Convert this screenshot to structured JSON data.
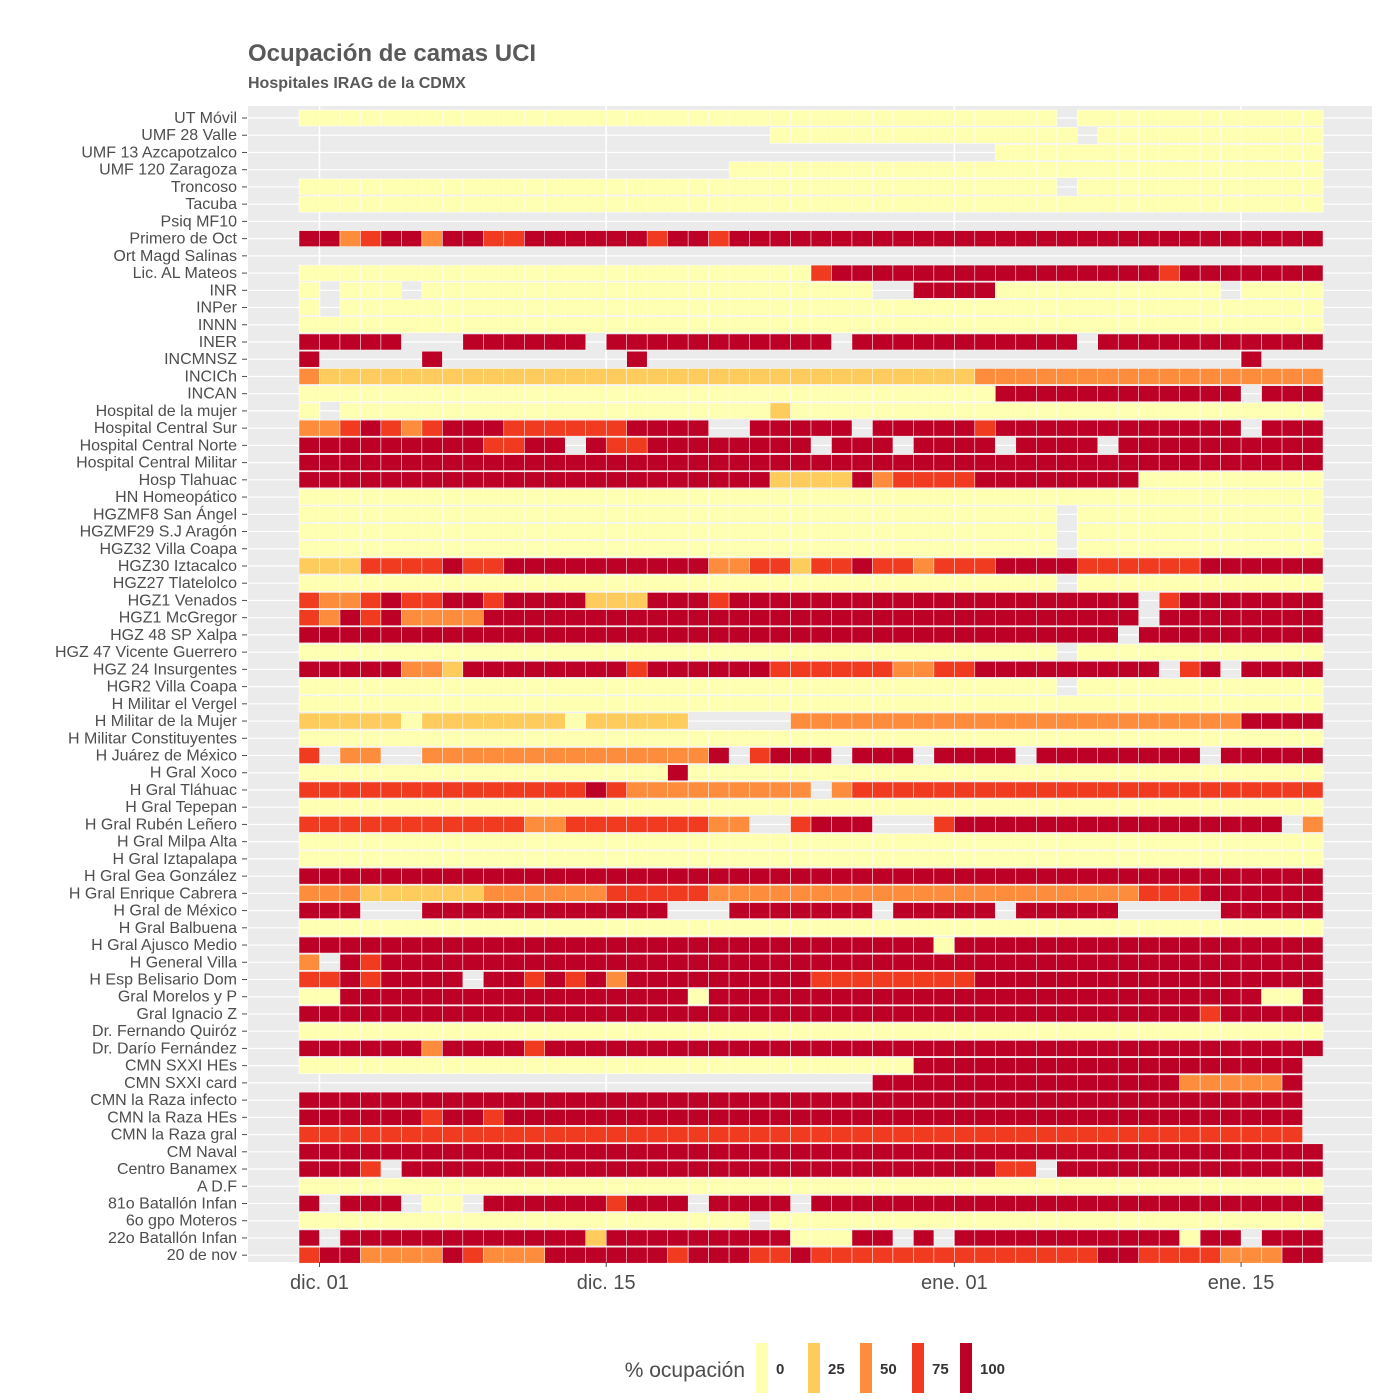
{
  "chart_data": {
    "type": "heatmap",
    "title": "Ocupación de camas UCI",
    "subtitle": "Hospitales IRAG de la CDMX",
    "x_start_date": "2020-11-30",
    "x_end_date": "2021-01-19",
    "x_ticks": [
      {
        "date": "2020-12-01",
        "label": "dic. 01"
      },
      {
        "date": "2020-12-15",
        "label": "dic. 15"
      },
      {
        "date": "2021-01-01",
        "label": "ene. 01"
      },
      {
        "date": "2021-01-15",
        "label": "ene. 15"
      }
    ],
    "legend": {
      "title": "% ocupación",
      "position": "bottom",
      "levels": [
        {
          "label": "0",
          "color": "#ffffb2"
        },
        {
          "label": "25",
          "color": "#fecc5c"
        },
        {
          "label": "50",
          "color": "#fd8d3c"
        },
        {
          "label": "75",
          "color": "#f03b20"
        },
        {
          "label": "100",
          "color": "#bd0026"
        }
      ]
    },
    "missing_color": "#ebebeb",
    "hospitals": [
      {
        "name": "UT Móvil",
        "values": "0000000000000000000000000000000000000-0000000000000000000000000000000000000000000000000000000"
      },
      {
        "name": "UMF 28 Valle",
        "values": "-----------------------000000000000000-00000000000000000000000000000000000000000000000000000"
      },
      {
        "name": "UMF 13 Azcapotzalco",
        "values": "----------------------------------00000000000000000000000000000000000000000000000000000000000"
      },
      {
        "name": "UMF 120 Zaragoza",
        "values": "---------------------00000000000000000000000000000000000000000000000000000000000000000000000"
      },
      {
        "name": "Troncoso",
        "values": "0000000000000000000000000000000000000-0000000000000000000000000000000000000000000000000000000"
      },
      {
        "name": "Tacuba",
        "values": "0000000000000000000000000000000000000000000000000000000000000000000000000000000000000000000000"
      },
      {
        "name": "Psiq MF10",
        "values": "----------------------------------------------------------------------------------------0000"
      },
      {
        "name": "Primero de Oct",
        "values": "442344244334444443443444444444444444444444444444444434444444444444444444444444444444444444444"
      },
      {
        "name": "Ort Magd Salinas",
        "values": "------------------------------------------------------------------------------------------------"
      },
      {
        "name": "Lic. AL Mateos",
        "values": "0000000000000000000000000344444444444444443444444444444444444434444444444444444444444444423343"
      },
      {
        "name": "INR",
        "values": "0-000-0000000000000000000000--444400000000000-0000000000000000000000000000000000000000000000"
      },
      {
        "name": "INPer",
        "values": "0-00000000000000000000000000000000000000000000000000000000000000000000000000000000000000000000"
      },
      {
        "name": "INNN",
        "values": "0000000000000000000000000000000000000000000000000000000000000000000000000000000000000000000000"
      },
      {
        "name": "INER",
        "values": "44444---444444-44444444444-44444444444-44444444444444444444444444444444444444444444444-44444"
      },
      {
        "name": "INCMNSZ",
        "values": "4-----4---------4-----------------------------4-------------------------------------4---------"
      },
      {
        "name": "INCICh",
        "values": "2111111111111111111111111111111112222222222222222222222222222222222222222222222222222222222221-"
      },
      {
        "name": "INCAN",
        "values": "0000000000000000000000000000000000444444444444-4444444444444444444444444444444444444444444444"
      },
      {
        "name": "Hospital de la mujer",
        "values": "0-000000000000000000000100000000000000000000000000000000000000000000000000000000000000000000"
      },
      {
        "name": "Hospital Central Sur",
        "values": "22343234443333334444--44444-444443444444444444-444444444444444444444444444444444444444444444"
      },
      {
        "name": "Hospital Central Norte",
        "values": "4444444443344-43344444444-444-4444-4444-44444444444444444444444444-44444444444444444444444444"
      },
      {
        "name": "Hospital Central Militar",
        "values": "4444444444444444444444444444444444444444444444444444444444444444444444444444444444444444444444"
      },
      {
        "name": "Hosp Tlahuac",
        "values": "4444444444444444444444411114233334444444400000000000000000000000000000000000000000044444444444"
      },
      {
        "name": "HN Homeopático",
        "values": "0000000000000000000000000000000000000000000000000000000000000000000000000000000000000000000000"
      },
      {
        "name": "HGZMF8 San Ángel",
        "values": "0000000000000000000000000000000000000-0000000000000000000000000000000000000000000000000000000"
      },
      {
        "name": "HGZMF29 S.J Aragón",
        "values": "0000000000000000000000000000000000000-0000000000000000000000000000000000000000000000000000000"
      },
      {
        "name": "HGZ32 Villa Coapa",
        "values": "0000000000000000000000000000000000000-0000000000000000000000000000000000000000000000000000000"
      },
      {
        "name": "HGZ30 Iztacalco",
        "values": "1113333433444444444422331334332333444433333344444444-44444444444444444444444444444444444444444442"
      },
      {
        "name": "HGZ27 Tlatelolco",
        "values": "0000000000000000000000000000000000000-0000000000000000000000000000000000000000000000000000000"
      },
      {
        "name": "HGZ1 Venados",
        "values": "32234334434444111444344444444444444444444-34444444444444444444444444444444444444444444444222222"
      },
      {
        "name": "HGZ1 McGregor",
        "values": "32434222244444444444444444444444444444444-44444444444444444444444444444444444444444444444444444"
      },
      {
        "name": "HGZ 48 SP Xalpa",
        "values": "4444444444444444444444444444444444444444-444444444444444444444444444444444444444444444444444444"
      },
      {
        "name": "HGZ 47 Vicente Guerrero",
        "values": "0000000000000000000000000000000000000-0000000000000000000000000000000000000000000000000000000"
      },
      {
        "name": "HGZ 24 Insurgentes",
        "values": "444442214444444434444443333332233444444444-34-444444444444444444444444444444444444444444444444"
      },
      {
        "name": "HGR2 Villa Coapa",
        "values": "0000000000000000000000000000000000000-0000000000000000000000000000000000000000000000000000000"
      },
      {
        "name": "H Militar el Vergel",
        "values": "0000000000000000000000000000000000000000000000000000000000000000000000000000000000000000000000"
      },
      {
        "name": "H Militar de la Mujer",
        "values": "1111101111111011111-----2222222222222222222222444444444444444444444444444444444444444444444444"
      },
      {
        "name": "H Militar Constituyentes",
        "values": "000000000000000000000000000000000000000000000000000000000000000000000000000000000000000000000"
      },
      {
        "name": "H Juárez de México",
        "values": "3-22--222222222222224-3444-444-4444-44444444-44444444444444444444444444444444444444444444--44"
      },
      {
        "name": "H Gral Xoco",
        "values": "0000000000000000004000000000000000000000000000000000000000000000000000000000000000000000000000"
      },
      {
        "name": "H Gral Tláhuac",
        "values": "3333333333333343222222222-23333333333333333333333333333333333333333333333333333333333333333333"
      },
      {
        "name": "H Gral Tepepan",
        "values": "0000000000000000000000000000000000000000000000000000000000000000000000000000000000000000000000"
      },
      {
        "name": "H Gral Rubén Leñero",
        "values": "3333333333322333333322--3444---34444444444444444-2-2214444444444444444444444444444444444444444"
      },
      {
        "name": "H Gral Milpa Alta",
        "values": "0000000000000000000000000000000000000000000000000000000000000000000000000000000000000000000000"
      },
      {
        "name": "H Gral Iztapalapa",
        "values": "0000000000000000000000000000000000000000000000000000000000000000000000000000000000000000000000"
      },
      {
        "name": "H Gral Gea González",
        "values": "4444444444444444444444444444444444444444444444444444444444444444444444444444444444444444444444"
      },
      {
        "name": "H Gral Enrique Cabrera",
        "values": "2221111112222223333322222222222222222222233344444444444444444444444444444444444444444444444443"
      },
      {
        "name": "H Gral de México",
        "values": "444---444444444444---4444444-44444-44444-----4444444444444444444444444444444444444444444444444"
      },
      {
        "name": "H Gral Balbuena",
        "values": "0000000000000000000000000000000000000000000000000000000000000000000000000000000000000000000000"
      },
      {
        "name": "H Gral Ajusco Medio",
        "values": "4444444444444444444444444444444044444444444444444444444444444444444444444444444444444444444444"
      },
      {
        "name": "H General Villa",
        "values": "2-4344444444444444444444444444444444444444444444444444444444444444444444444444444444444444444444"
      },
      {
        "name": "H Esp Belisario Dom",
        "values": "33434444-4434342444444444333333334444444444444444444444444444444444444444444444444444444443344"
      },
      {
        "name": "Gral Morelos y P",
        "values": "004444444444444444404444444444444444444444444440044444444444444444444444444444444444444444444444"
      },
      {
        "name": "Gral Ignacio Z",
        "values": "4444444444444444444444444444444444444444444434444444444444444444444444444444444444444444444444"
      },
      {
        "name": "Dr. Fernando Quiróz",
        "values": "0000000000000000000000000000000000000000000000000000000000000000000000000000000000000000000000"
      },
      {
        "name": "Dr. Darío Fernández",
        "values": "4444442444434444444444444444444444444444444444444444444444444444444444444444444444444444444444"
      },
      {
        "name": "CMN SXXI HEs",
        "values": "0000000000000000000000000000004444444444444444444-44444444444444444444444444444444444444444444"
      },
      {
        "name": "CMN SXXI card",
        "values": "----------------------------444444444444444222224-33334444444444444444444444444444444444444444"
      },
      {
        "name": "CMN la Raza infecto",
        "values": "4444444444444444444444444444444444444444444444444-44444444444444444444444444444444444444444444"
      },
      {
        "name": "CMN la Raza HEs",
        "values": "4444443443444444444444444444444444444444444444444-44444444444444444444444444444444444444444444"
      },
      {
        "name": "CMN la Raza gral",
        "values": "3333333333333333333333333333333333333333333333333-33333333333333333333333333333333333333333333"
      },
      {
        "name": "CM Naval",
        "values": "4444444444444444444444444444444444444444444444444444444444444444444444444444444444444444444444"
      },
      {
        "name": "Centro Banamex",
        "values": "4443-4444444444444444444444444444433-4444444444444444444444444444444444444444444444-444444444"
      },
      {
        "name": "A D.F",
        "values": "000000000000000000000000000000000000000000000000000000000000000000000000000000000000000000000"
      },
      {
        "name": "81o Batallón Infan",
        "values": "4-444-00-4444443444-4444-4444444444444444444444444444444444444444-4444444444444444444444444444"
      },
      {
        "name": "6o gpo Moteros",
        "values": "0000000000000000000000-00000000000000000000000000000000000000000040000000000000000000000000000"
      },
      {
        "name": "22o Batallón Infan",
        "values": "4-444444444444144444444400044-4-44444444444044-444-4444-44444444444444444444444444444444444444"
      },
      {
        "name": "20 de nov",
        "values": "3442222432224444443444334333333333333334433332224444444444444433334444444444444444444444444444"
      }
    ]
  }
}
